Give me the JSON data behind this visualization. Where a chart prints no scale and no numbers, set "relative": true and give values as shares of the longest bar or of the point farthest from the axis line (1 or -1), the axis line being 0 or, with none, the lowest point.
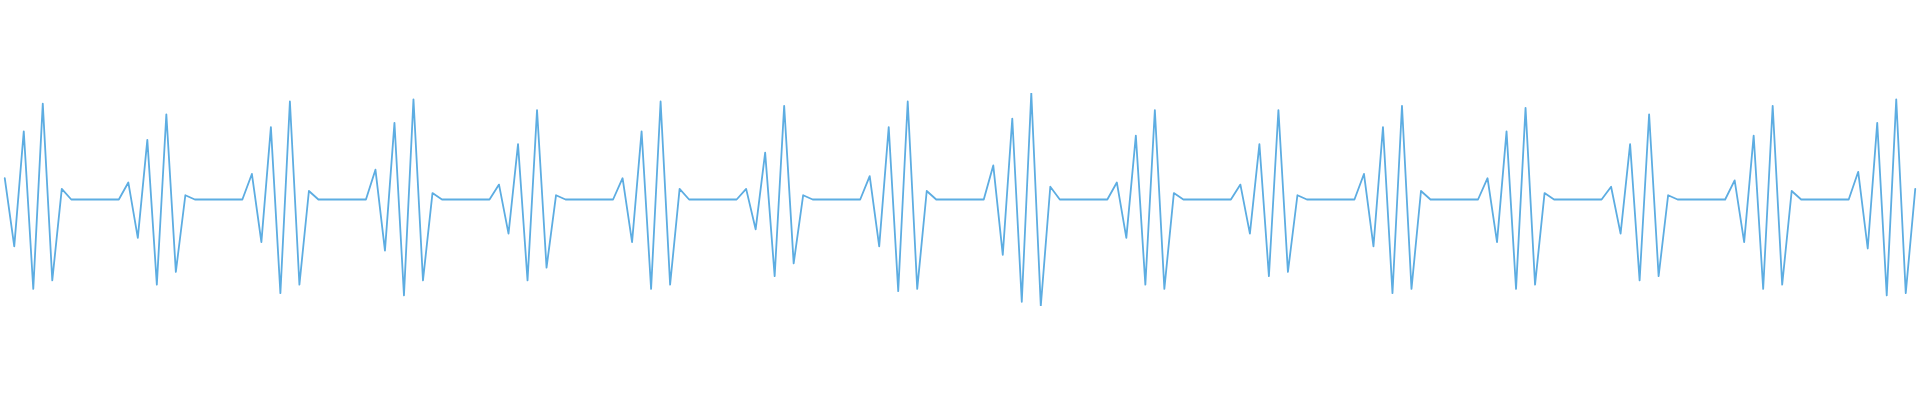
{
  "chart_data": {
    "type": "line",
    "relative": true,
    "categories": [
      null,
      null,
      null,
      null,
      null,
      null,
      null,
      null,
      null,
      null,
      null,
      null,
      null,
      null,
      null,
      null,
      null,
      null,
      null,
      null,
      null,
      null,
      null,
      null,
      null,
      null,
      null,
      null,
      null,
      null,
      null,
      null,
      null,
      null,
      null,
      null,
      null,
      null,
      null,
      null,
      null,
      null,
      null,
      null,
      null,
      null,
      null,
      null,
      null,
      null,
      null,
      null,
      null,
      null,
      null,
      null,
      null,
      null,
      null,
      null,
      null,
      null,
      null,
      null,
      null,
      null,
      null,
      null,
      null,
      null,
      null,
      null,
      null,
      null,
      null,
      null,
      null,
      null,
      null,
      null,
      null,
      null,
      null,
      null,
      null,
      null,
      null,
      null,
      null,
      null,
      null,
      null,
      null,
      null,
      null,
      null,
      null,
      null,
      null,
      null,
      null,
      null,
      null,
      null,
      null,
      null,
      null,
      null,
      null,
      null,
      null,
      null,
      null,
      null,
      null,
      null,
      null,
      null,
      null,
      null,
      null,
      null,
      null,
      null,
      null,
      null,
      null,
      null,
      null,
      null,
      null,
      null,
      null,
      null,
      null,
      null,
      null,
      null,
      null,
      null,
      null,
      null,
      null,
      null,
      null,
      null,
      null,
      null,
      null,
      null,
      null,
      null,
      null,
      null,
      null,
      null,
      null,
      null,
      null,
      null,
      null,
      null,
      null,
      null,
      null,
      null,
      null,
      null,
      null,
      null,
      null,
      null,
      null,
      null,
      null,
      null,
      null,
      null,
      null,
      null,
      null,
      null,
      null,
      null,
      null,
      null,
      null,
      null,
      null,
      null,
      null,
      null,
      null,
      null,
      null,
      null,
      null,
      null,
      null,
      null,
      null,
      null
    ],
    "series": [
      {
        "color": "#5dade2",
        "values": [
          0.6,
          0.28,
          0.82,
          0.08,
          0.95,
          0.12,
          0.55,
          0.5,
          0.5,
          0.5,
          0.5,
          0.5,
          0.5,
          0.58,
          0.32,
          0.78,
          0.1,
          0.9,
          0.16,
          0.52,
          0.5,
          0.5,
          0.5,
          0.5,
          0.5,
          0.5,
          0.62,
          0.3,
          0.84,
          0.06,
          0.96,
          0.1,
          0.54,
          0.5,
          0.5,
          0.5,
          0.5,
          0.5,
          0.5,
          0.64,
          0.26,
          0.86,
          0.05,
          0.97,
          0.12,
          0.53,
          0.5,
          0.5,
          0.5,
          0.5,
          0.5,
          0.5,
          0.57,
          0.34,
          0.76,
          0.12,
          0.92,
          0.18,
          0.52,
          0.5,
          0.5,
          0.5,
          0.5,
          0.5,
          0.5,
          0.6,
          0.3,
          0.82,
          0.08,
          0.96,
          0.1,
          0.55,
          0.5,
          0.5,
          0.5,
          0.5,
          0.5,
          0.5,
          0.55,
          0.36,
          0.72,
          0.14,
          0.94,
          0.2,
          0.52,
          0.5,
          0.5,
          0.5,
          0.5,
          0.5,
          0.5,
          0.61,
          0.28,
          0.84,
          0.07,
          0.96,
          0.08,
          0.54,
          0.5,
          0.5,
          0.5,
          0.5,
          0.5,
          0.5,
          0.66,
          0.24,
          0.88,
          0.02,
          1.0,
          0.0,
          0.56,
          0.5,
          0.5,
          0.5,
          0.5,
          0.5,
          0.5,
          0.58,
          0.32,
          0.8,
          0.1,
          0.92,
          0.08,
          0.53,
          0.5,
          0.5,
          0.5,
          0.5,
          0.5,
          0.5,
          0.57,
          0.34,
          0.76,
          0.14,
          0.92,
          0.16,
          0.52,
          0.5,
          0.5,
          0.5,
          0.5,
          0.5,
          0.5,
          0.62,
          0.28,
          0.84,
          0.06,
          0.94,
          0.08,
          0.54,
          0.5,
          0.5,
          0.5,
          0.5,
          0.5,
          0.5,
          0.6,
          0.3,
          0.82,
          0.08,
          0.93,
          0.1,
          0.53,
          0.5,
          0.5,
          0.5,
          0.5,
          0.5,
          0.5,
          0.56,
          0.34,
          0.76,
          0.12,
          0.9,
          0.14,
          0.52,
          0.5,
          0.5,
          0.5,
          0.5,
          0.5,
          0.5,
          0.59,
          0.3,
          0.8,
          0.08,
          0.94,
          0.1,
          0.54,
          0.5,
          0.5,
          0.5,
          0.5,
          0.5,
          0.5,
          0.63,
          0.27,
          0.86,
          0.05,
          0.97,
          0.06,
          0.55
        ]
      }
    ]
  }
}
